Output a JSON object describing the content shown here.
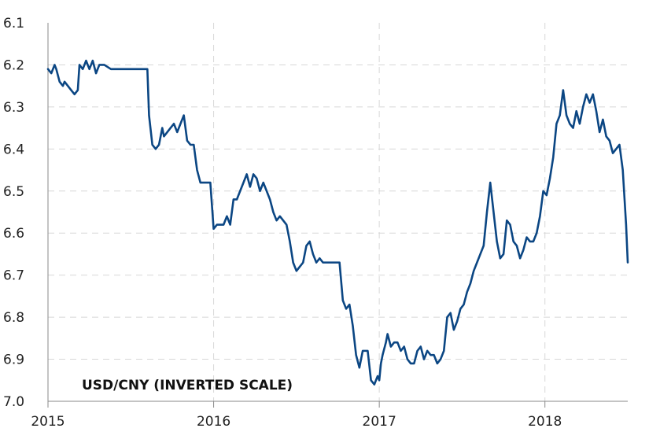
{
  "chart_data": {
    "type": "line",
    "title": "",
    "annotation": "USD/CNY (INVERTED SCALE)",
    "xlabel": "",
    "ylabel": "",
    "x_ticks": [
      "2015",
      "2016",
      "2017",
      "2018"
    ],
    "x_tick_values": [
      2015,
      2016,
      2017,
      2018
    ],
    "xlim": [
      2015,
      2018.5
    ],
    "y_ticks": [
      "6.1",
      "6.2",
      "6.3",
      "6.4",
      "6.5",
      "6.6",
      "6.7",
      "6.8",
      "6.9",
      "7.0"
    ],
    "y_tick_values": [
      6.1,
      6.2,
      6.3,
      6.4,
      6.5,
      6.6,
      6.7,
      6.8,
      6.9,
      7.0
    ],
    "ylim": [
      6.1,
      7.0
    ],
    "y_inverted": true,
    "grid": true,
    "line_color": "#0b4683",
    "series": [
      {
        "x": [
          2015.0,
          2015.02,
          2015.04,
          2015.05,
          2015.07,
          2015.09,
          2015.1,
          2015.12,
          2015.14,
          2015.16,
          2015.18,
          2015.19,
          2015.21,
          2015.23,
          2015.25,
          2015.27,
          2015.29,
          2015.31,
          2015.34,
          2015.38,
          2015.45,
          2015.5,
          2015.55,
          2015.6,
          2015.61,
          2015.63,
          2015.65,
          2015.67,
          2015.69,
          2015.7,
          2015.72,
          2015.74,
          2015.76,
          2015.78,
          2015.8,
          2015.82,
          2015.84,
          2015.86,
          2015.88,
          2015.9,
          2015.92,
          2015.94,
          2015.96,
          2015.98,
          2016.0,
          2016.02,
          2016.03,
          2016.04,
          2016.06,
          2016.08,
          2016.1,
          2016.12,
          2016.14,
          2016.16,
          2016.18,
          2016.2,
          2016.22,
          2016.24,
          2016.26,
          2016.28,
          2016.3,
          2016.32,
          2016.34,
          2016.36,
          2016.38,
          2016.4,
          2016.42,
          2016.44,
          2016.46,
          2016.48,
          2016.5,
          2016.52,
          2016.54,
          2016.56,
          2016.58,
          2016.6,
          2016.62,
          2016.64,
          2016.66,
          2016.7,
          2016.74,
          2016.76,
          2016.78,
          2016.8,
          2016.82,
          2016.84,
          2016.86,
          2016.88,
          2016.9,
          2016.92,
          2016.93,
          2016.95,
          2016.97,
          2016.99,
          2017.0,
          2017.01,
          2017.02,
          2017.04,
          2017.05,
          2017.07,
          2017.09,
          2017.11,
          2017.13,
          2017.15,
          2017.17,
          2017.19,
          2017.21,
          2017.23,
          2017.25,
          2017.27,
          2017.29,
          2017.31,
          2017.33,
          2017.35,
          2017.37,
          2017.39,
          2017.41,
          2017.43,
          2017.45,
          2017.47,
          2017.49,
          2017.51,
          2017.53,
          2017.55,
          2017.57,
          2017.59,
          2017.61,
          2017.63,
          2017.65,
          2017.67,
          2017.69,
          2017.71,
          2017.73,
          2017.75,
          2017.77,
          2017.79,
          2017.81,
          2017.83,
          2017.85,
          2017.87,
          2017.89,
          2017.91,
          2017.93,
          2017.95,
          2017.97,
          2017.99,
          2018.01,
          2018.03,
          2018.05,
          2018.07,
          2018.09,
          2018.11,
          2018.13,
          2018.15,
          2018.17,
          2018.19,
          2018.21,
          2018.23,
          2018.25,
          2018.27,
          2018.29,
          2018.31,
          2018.33,
          2018.35,
          2018.37,
          2018.39,
          2018.41,
          2018.43,
          2018.45,
          2018.47,
          2018.49,
          2018.5
        ],
        "y": [
          6.21,
          6.22,
          6.2,
          6.21,
          6.24,
          6.25,
          6.24,
          6.25,
          6.26,
          6.27,
          6.26,
          6.2,
          6.21,
          6.19,
          6.21,
          6.19,
          6.22,
          6.2,
          6.2,
          6.21,
          6.21,
          6.21,
          6.21,
          6.21,
          6.32,
          6.39,
          6.4,
          6.39,
          6.35,
          6.37,
          6.36,
          6.35,
          6.34,
          6.36,
          6.34,
          6.32,
          6.38,
          6.39,
          6.39,
          6.45,
          6.48,
          6.48,
          6.48,
          6.48,
          6.59,
          6.58,
          6.58,
          6.58,
          6.58,
          6.56,
          6.58,
          6.52,
          6.52,
          6.5,
          6.48,
          6.46,
          6.49,
          6.46,
          6.47,
          6.5,
          6.48,
          6.5,
          6.52,
          6.55,
          6.57,
          6.56,
          6.57,
          6.58,
          6.62,
          6.67,
          6.69,
          6.68,
          6.67,
          6.63,
          6.62,
          6.65,
          6.67,
          6.66,
          6.67,
          6.67,
          6.67,
          6.67,
          6.76,
          6.78,
          6.77,
          6.82,
          6.89,
          6.92,
          6.88,
          6.88,
          6.88,
          6.95,
          6.96,
          6.94,
          6.95,
          6.91,
          6.89,
          6.86,
          6.84,
          6.87,
          6.86,
          6.86,
          6.88,
          6.87,
          6.9,
          6.91,
          6.91,
          6.88,
          6.87,
          6.9,
          6.88,
          6.89,
          6.89,
          6.91,
          6.9,
          6.88,
          6.8,
          6.79,
          6.83,
          6.81,
          6.78,
          6.77,
          6.74,
          6.72,
          6.69,
          6.67,
          6.65,
          6.63,
          6.55,
          6.48,
          6.55,
          6.62,
          6.66,
          6.65,
          6.57,
          6.58,
          6.62,
          6.63,
          6.66,
          6.64,
          6.61,
          6.62,
          6.62,
          6.6,
          6.56,
          6.5,
          6.51,
          6.47,
          6.42,
          6.34,
          6.32,
          6.26,
          6.32,
          6.34,
          6.35,
          6.31,
          6.34,
          6.3,
          6.27,
          6.29,
          6.27,
          6.31,
          6.36,
          6.33,
          6.37,
          6.38,
          6.41,
          6.4,
          6.39,
          6.45,
          6.58,
          6.67
        ]
      }
    ]
  }
}
